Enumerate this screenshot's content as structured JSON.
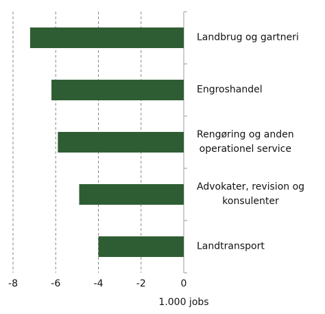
{
  "chart_data": {
    "type": "bar",
    "orientation": "horizontal",
    "categories": [
      "Landbrug og gartneri",
      "Engroshandel",
      "Rengøring og anden\noperationel service",
      "Advokater, revision og\nkonsulenter",
      "Landtransport"
    ],
    "values": [
      -7.2,
      -6.2,
      -5.9,
      -4.9,
      -4.0
    ],
    "color": "#2f5d33",
    "xlim": [
      -8,
      0
    ],
    "xticks": [
      -8,
      -6,
      -4,
      -2,
      0
    ],
    "xlabel": "1.000 jobs",
    "grid": true
  }
}
